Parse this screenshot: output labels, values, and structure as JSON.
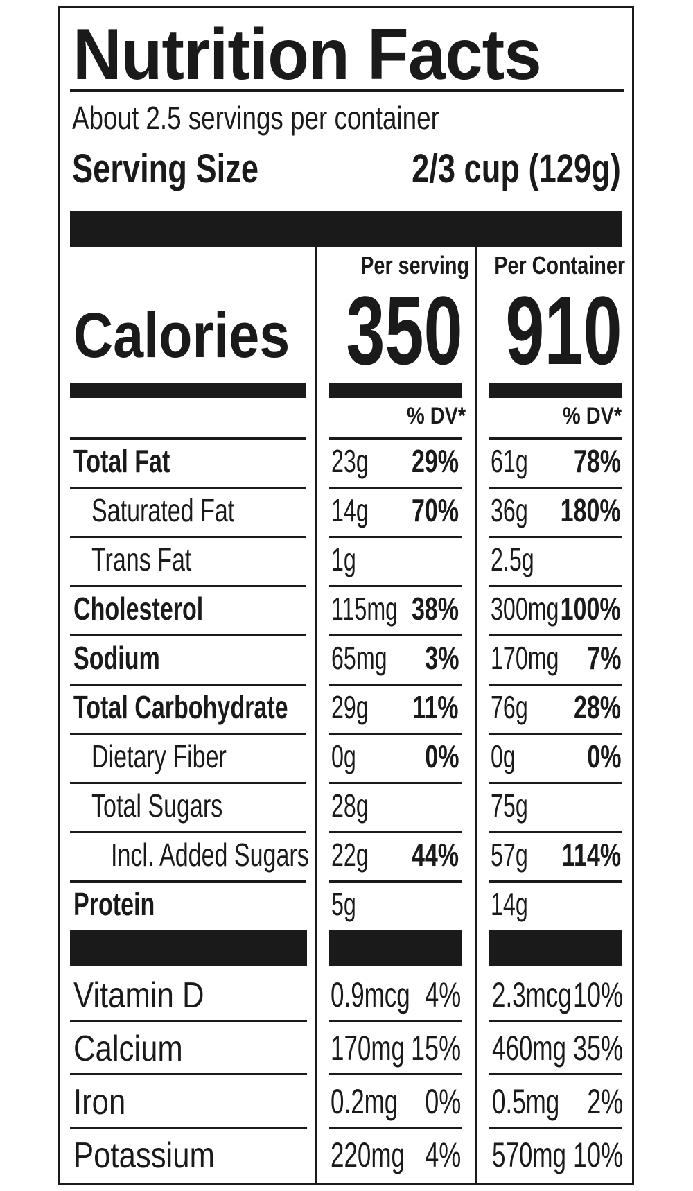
{
  "title": "Nutrition Facts",
  "servings_per_container": "About 2.5 servings per container",
  "serving_size": {
    "label": "Serving Size",
    "value": "2/3 cup (129g)"
  },
  "calories": {
    "label": "Calories",
    "per_serving_header": "Per serving",
    "per_container_header": "Per Container",
    "per_serving_value": "350",
    "per_container_value": "910"
  },
  "dv_header": "% DV*",
  "nutrients": [
    {
      "name": "Total Fat",
      "bold": true,
      "indent": 0,
      "serving_amount": "23g",
      "serving_dv": "29%",
      "container_amount": "61g",
      "container_dv": "78%"
    },
    {
      "name": "Saturated Fat",
      "bold": false,
      "indent": 1,
      "serving_amount": "14g",
      "serving_dv": "70%",
      "container_amount": "36g",
      "container_dv": "180%"
    },
    {
      "name": "Trans Fat",
      "bold": false,
      "indent": 1,
      "serving_amount": "1g",
      "serving_dv": "",
      "container_amount": "2.5g",
      "container_dv": ""
    },
    {
      "name": "Cholesterol",
      "bold": true,
      "indent": 0,
      "serving_amount": "115mg",
      "serving_dv": "38%",
      "container_amount": "300mg",
      "container_dv": "100%"
    },
    {
      "name": "Sodium",
      "bold": true,
      "indent": 0,
      "serving_amount": "65mg",
      "serving_dv": "3%",
      "container_amount": "170mg",
      "container_dv": "7%"
    },
    {
      "name": "Total Carbohydrate",
      "bold": true,
      "indent": 0,
      "serving_amount": "29g",
      "serving_dv": "11%",
      "container_amount": "76g",
      "container_dv": "28%"
    },
    {
      "name": "Dietary Fiber",
      "bold": false,
      "indent": 1,
      "serving_amount": "0g",
      "serving_dv": "0%",
      "container_amount": "0g",
      "container_dv": "0%"
    },
    {
      "name": "Total Sugars",
      "bold": false,
      "indent": 1,
      "serving_amount": "28g",
      "serving_dv": "",
      "container_amount": "75g",
      "container_dv": ""
    },
    {
      "name": "Incl. Added Sugars",
      "bold": false,
      "indent": 2,
      "serving_amount": "22g",
      "serving_dv": "44%",
      "container_amount": "57g",
      "container_dv": "114%"
    },
    {
      "name": "Protein",
      "bold": true,
      "indent": 0,
      "serving_amount": "5g",
      "serving_dv": "",
      "container_amount": "14g",
      "container_dv": ""
    }
  ],
  "vitamins": [
    {
      "name": "Vitamin D",
      "serving_amount": "0.9mcg",
      "serving_dv": "4%",
      "container_amount": "2.3mcg",
      "container_dv": "10%"
    },
    {
      "name": "Calcium",
      "serving_amount": "170mg",
      "serving_dv": "15%",
      "container_amount": "460mg",
      "container_dv": "35%"
    },
    {
      "name": "Iron",
      "serving_amount": "0.2mg",
      "serving_dv": "0%",
      "container_amount": "0.5mg",
      "container_dv": "2%"
    },
    {
      "name": "Potassium",
      "serving_amount": "220mg",
      "serving_dv": "4%",
      "container_amount": "570mg",
      "container_dv": "10%"
    }
  ]
}
